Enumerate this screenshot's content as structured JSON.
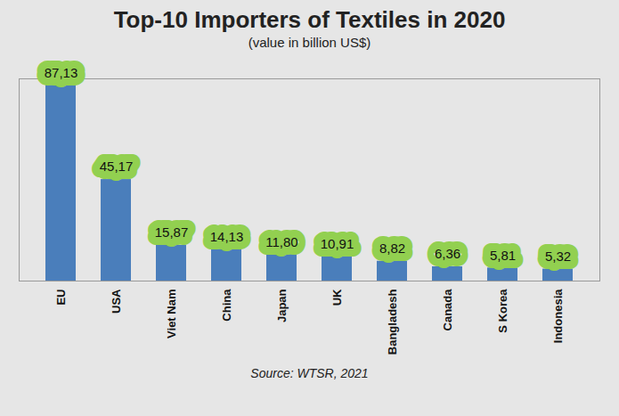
{
  "chart_data": {
    "type": "bar",
    "title": "Top-10 Importers of Textiles in 2020",
    "subtitle": "(value in billion US$)",
    "source": "Source: WTSR, 2021",
    "categories": [
      "EU",
      "USA",
      "Viet Nam",
      "China",
      "Japan",
      "UK",
      "Bangladesh",
      "Canada",
      "S Korea",
      "Indonesia"
    ],
    "values": [
      87.13,
      45.17,
      15.87,
      14.13,
      11.8,
      10.91,
      8.82,
      6.36,
      5.81,
      5.32
    ],
    "value_labels": [
      "87,13",
      "45,17",
      "15,87",
      "14,13",
      "11,80",
      "10,91",
      "8,82",
      "6,36",
      "5,81",
      "5,32"
    ],
    "color": "#4a7ebb",
    "ylim": [
      0,
      90
    ],
    "grid": false,
    "data_labels": true,
    "tick_labels": "x"
  }
}
